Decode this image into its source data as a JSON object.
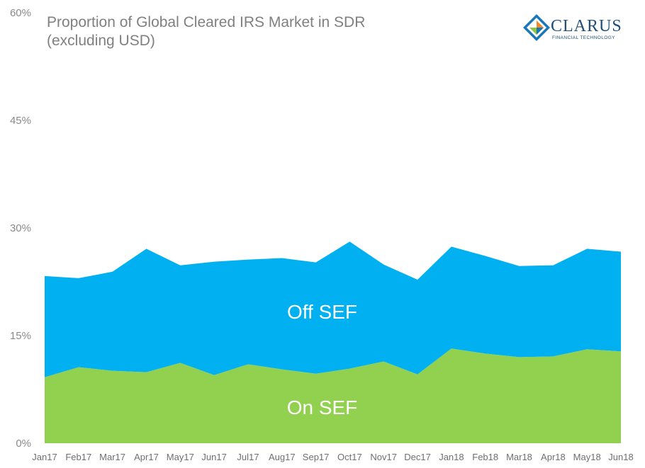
{
  "logo": {
    "name": "CLARUS",
    "tagline": "FINANCIAL TECHNOLOGY",
    "colors": {
      "blue": "#1a78b8",
      "orange": "#f08a24",
      "green": "#8dc63f",
      "navy": "#1f4e79"
    }
  },
  "chart_data": {
    "type": "area",
    "stacked": true,
    "title": [
      "Proportion of Global Cleared IRS Market in SDR",
      "(excluding USD)"
    ],
    "xlabel": "",
    "ylabel": "",
    "ylim": [
      0,
      60
    ],
    "yticks": [
      "0%",
      "15%",
      "30%",
      "45%",
      "60%"
    ],
    "ytick_values": [
      0,
      15,
      30,
      45,
      60
    ],
    "grid": false,
    "categories": [
      "Jan17",
      "Feb17",
      "Mar17",
      "Apr17",
      "May17",
      "Jun17",
      "Jul17",
      "Aug17",
      "Sep17",
      "Oct17",
      "Nov17",
      "Dec17",
      "Jan18",
      "Feb18",
      "Mar18",
      "Apr18",
      "May18",
      "Jun18"
    ],
    "series": [
      {
        "name": "On SEF",
        "color": "#92d050",
        "values": [
          9.2,
          10.6,
          10.1,
          9.9,
          11.2,
          9.5,
          11.0,
          10.3,
          9.7,
          10.4,
          11.4,
          9.6,
          13.2,
          12.5,
          12.0,
          12.1,
          13.1,
          12.8
        ]
      },
      {
        "name": "Off SEF",
        "color": "#00b0f0",
        "values": [
          14.1,
          12.4,
          13.8,
          17.2,
          13.6,
          15.8,
          14.6,
          15.5,
          15.5,
          17.7,
          13.5,
          13.2,
          14.2,
          13.6,
          12.7,
          12.7,
          14.0,
          13.9
        ]
      }
    ]
  }
}
